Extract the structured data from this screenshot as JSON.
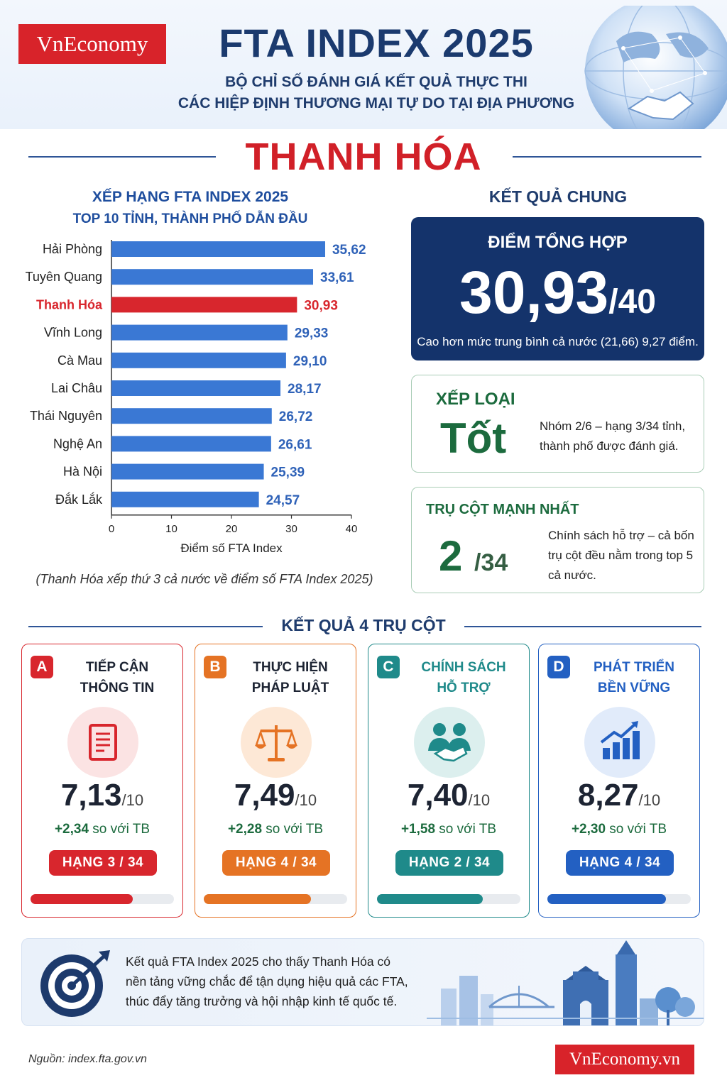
{
  "header": {
    "logo": "VnEconomy",
    "title": "FTA INDEX 2025",
    "subtitle_line1": "BỘ CHỈ SỐ ĐÁNH GIÁ KẾT QUẢ THỰC THI",
    "subtitle_line2": "CÁC HIỆP ĐỊNH THƯƠNG MẠI TỰ DO TẠI ĐỊA PHƯƠNG"
  },
  "province": "THANH HÓA",
  "ranking": {
    "title": "XẾP HẠNG FTA INDEX 2025",
    "subtitle": "TOP 10 TỈNH, THÀNH PHỐ DẪN ĐẦU",
    "note": "(Thanh Hóa xếp thứ 3 cả nước về điểm số FTA Index 2025)"
  },
  "chart_data": {
    "type": "bar",
    "orientation": "horizontal",
    "categories": [
      "Hải Phòng",
      "Tuyên Quang",
      "Thanh Hóa",
      "Vĩnh Long",
      "Cà Mau",
      "Lai Châu",
      "Thái Nguyên",
      "Nghệ An",
      "Hà Nội",
      "Đắk Lắk"
    ],
    "values": [
      35.62,
      33.61,
      30.93,
      29.33,
      29.1,
      28.17,
      26.72,
      26.61,
      25.39,
      24.57
    ],
    "value_labels": [
      "35,62",
      "33,61",
      "30,93",
      "29,33",
      "29,10",
      "28,17",
      "26,72",
      "26,61",
      "25,39",
      "24,57"
    ],
    "highlight": "Thanh Hóa",
    "xlabel": "Điểm số FTA Index",
    "xlim": [
      0,
      40
    ],
    "xticks": [
      0,
      10,
      20,
      30,
      40
    ],
    "grid": false,
    "colors": {
      "bar": "#3a78d4",
      "highlight": "#d8262d",
      "label": "#2f62b8"
    }
  },
  "overall": {
    "title": "KẾT QUẢ CHUNG",
    "score_label": "ĐIỂM TỔNG HỢP",
    "score": "30,93",
    "score_max": "/40",
    "note": "Cao hơn mức trung bình cả nước (21,66) 9,27 điểm."
  },
  "classification": {
    "label": "XẾP LOẠI",
    "value": "Tốt",
    "desc": "Nhóm 2/6 – hạng 3/34 tỉnh, thành phố được đánh giá."
  },
  "strongest": {
    "label": "TRỤ CỘT MẠNH NHẤT",
    "value": "2",
    "value_max": "/34",
    "desc": "Chính sách hỗ trợ – cả bốn trụ cột đều nằm trong top 5 cả nước."
  },
  "pillars": {
    "title": "KẾT QUẢ 4 TRỤ CỘT",
    "items": [
      {
        "letter": "A",
        "line1": "TIẾP CẬN",
        "line2": "THÔNG TIN",
        "icon": "document-icon",
        "score": "7,13",
        "max": "/10",
        "diff": "+2,34",
        "diff_suffix": " so với TB",
        "rank": "HẠNG 3  /  34",
        "progress": 0.713,
        "color": "#d8262d",
        "light": "#fbe3e3",
        "name_color": "#1d2433"
      },
      {
        "letter": "B",
        "line1": "THỰC HIỆN",
        "line2": "PHÁP LUẬT",
        "icon": "scales-icon",
        "score": "7,49",
        "max": "/10",
        "diff": "+2,28",
        "diff_suffix": " so với TB",
        "rank": "HẠNG 4  /  34",
        "progress": 0.749,
        "color": "#e57324",
        "light": "#fde8d6",
        "name_color": "#1d2433"
      },
      {
        "letter": "C",
        "line1": "CHÍNH SÁCH",
        "line2": "HỖ TRỢ",
        "icon": "handshake-icon",
        "score": "7,40",
        "max": "/10",
        "diff": "+1,58",
        "diff_suffix": " so với TB",
        "rank": "HẠNG 2  /  34",
        "progress": 0.74,
        "color": "#1f8a8a",
        "light": "#dcefee",
        "name_color": "#1f8a8a"
      },
      {
        "letter": "D",
        "line1": "PHÁT TRIỂN",
        "line2": "BỀN VỮNG",
        "icon": "growth-chart-icon",
        "score": "8,27",
        "max": "/10",
        "diff": "+2,30",
        "diff_suffix": " so với TB",
        "rank": "HẠNG 4  /  34",
        "progress": 0.827,
        "color": "#2360c2",
        "light": "#e1ebfa",
        "name_color": "#2360c2"
      }
    ]
  },
  "conclusion": {
    "text": "Kết quả FTA Index 2025 cho thấy Thanh Hóa có nền tảng vững chắc để tận dụng hiệu quả các FTA, thúc đẩy tăng trưởng và hội nhập kinh tế quốc tế."
  },
  "footer": {
    "source": "Nguồn: index.fta.gov.vn",
    "logo": "VnEconomy.vn"
  }
}
